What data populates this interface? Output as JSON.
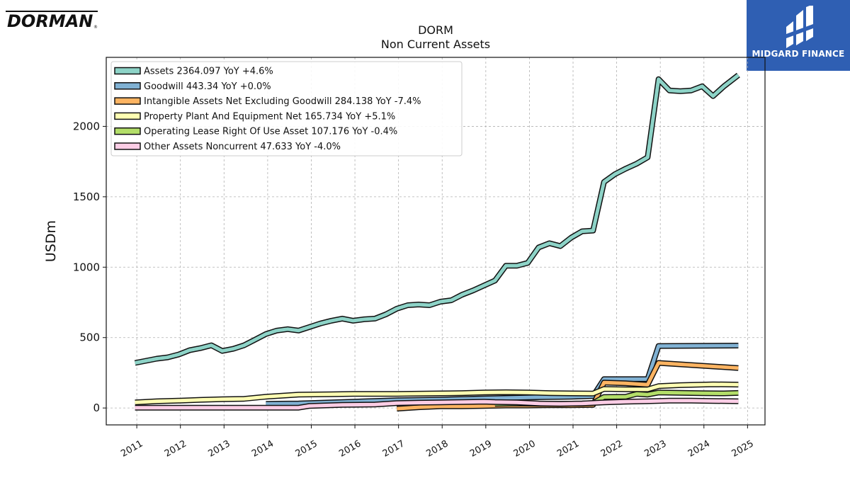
{
  "logos": {
    "left_brand": "DORMAN",
    "right_brand": "MIDGARD FINANCE"
  },
  "colors": {
    "assets": "#8dd3c7",
    "goodwill": "#80b1d3",
    "intangibles": "#fdb462",
    "ppe": "#ffffb3",
    "lease": "#b3de69",
    "other": "#fccde5",
    "logo_bg": "#2f5fb3"
  },
  "chart_data": {
    "type": "line",
    "title": "DORM",
    "subtitle": "Non Current  Assets",
    "xlabel": "",
    "ylabel": "USDm",
    "xlim": [
      2010.3,
      2025.4
    ],
    "ylim": [
      -120,
      2490
    ],
    "yticks": [
      0,
      500,
      1000,
      1500,
      2000
    ],
    "xticks": [
      "2011",
      "2012",
      "2013",
      "2014",
      "2015",
      "2016",
      "2017",
      "2018",
      "2019",
      "2020",
      "2021",
      "2022",
      "2023",
      "2024",
      "2025"
    ],
    "grid": true,
    "legend_position": "top-left",
    "series": [
      {
        "name": "Assets",
        "legend": "Assets  2364.097 YoY +4.6%",
        "points": [
          [
            2010.96,
            320
          ],
          [
            2011.21,
            335
          ],
          [
            2011.46,
            350
          ],
          [
            2011.71,
            360
          ],
          [
            2011.96,
            380
          ],
          [
            2012.21,
            410
          ],
          [
            2012.46,
            425
          ],
          [
            2012.71,
            445
          ],
          [
            2012.96,
            405
          ],
          [
            2013.21,
            420
          ],
          [
            2013.46,
            445
          ],
          [
            2013.71,
            485
          ],
          [
            2013.96,
            525
          ],
          [
            2014.21,
            550
          ],
          [
            2014.46,
            560
          ],
          [
            2014.71,
            550
          ],
          [
            2014.96,
            575
          ],
          [
            2015.21,
            600
          ],
          [
            2015.46,
            620
          ],
          [
            2015.71,
            635
          ],
          [
            2015.96,
            620
          ],
          [
            2016.21,
            630
          ],
          [
            2016.46,
            635
          ],
          [
            2016.71,
            665
          ],
          [
            2016.96,
            705
          ],
          [
            2017.21,
            730
          ],
          [
            2017.46,
            735
          ],
          [
            2017.71,
            730
          ],
          [
            2017.96,
            755
          ],
          [
            2018.21,
            765
          ],
          [
            2018.46,
            805
          ],
          [
            2018.71,
            835
          ],
          [
            2018.96,
            870
          ],
          [
            2019.21,
            905
          ],
          [
            2019.46,
            1010
          ],
          [
            2019.71,
            1010
          ],
          [
            2019.96,
            1030
          ],
          [
            2020.21,
            1140
          ],
          [
            2020.46,
            1170
          ],
          [
            2020.71,
            1150
          ],
          [
            2020.96,
            1210
          ],
          [
            2021.21,
            1255
          ],
          [
            2021.46,
            1260
          ],
          [
            2021.71,
            1605
          ],
          [
            2021.96,
            1660
          ],
          [
            2022.21,
            1700
          ],
          [
            2022.46,
            1735
          ],
          [
            2022.71,
            1780
          ],
          [
            2022.96,
            2335
          ],
          [
            2023.21,
            2255
          ],
          [
            2023.46,
            2250
          ],
          [
            2023.71,
            2255
          ],
          [
            2023.96,
            2285
          ],
          [
            2024.21,
            2215
          ],
          [
            2024.46,
            2285
          ],
          [
            2024.79,
            2364
          ]
        ]
      },
      {
        "name": "Goodwill",
        "legend": "Goodwill  443.34 YoY +0.0%",
        "points": [
          [
            2013.96,
            30
          ],
          [
            2014.71,
            32
          ],
          [
            2015.96,
            45
          ],
          [
            2016.96,
            55
          ],
          [
            2017.96,
            60
          ],
          [
            2018.96,
            68
          ],
          [
            2019.96,
            75
          ],
          [
            2020.96,
            80
          ],
          [
            2021.46,
            85
          ],
          [
            2021.71,
            205
          ],
          [
            2022.71,
            205
          ],
          [
            2022.96,
            440
          ],
          [
            2024.79,
            443
          ]
        ]
      },
      {
        "name": "Intangible Assets Net Excluding Goodwill",
        "legend": "Intangible Assets Net Excluding Goodwill  284.138 YoY -7.4%",
        "points": [
          [
            2016.96,
            -5
          ],
          [
            2017.46,
            5
          ],
          [
            2017.96,
            12
          ],
          [
            2018.46,
            12
          ],
          [
            2018.96,
            15
          ],
          [
            2019.46,
            18
          ],
          [
            2019.96,
            18
          ],
          [
            2020.46,
            20
          ],
          [
            2020.96,
            20
          ],
          [
            2021.46,
            22
          ],
          [
            2021.71,
            180
          ],
          [
            2022.21,
            175
          ],
          [
            2022.71,
            165
          ],
          [
            2022.96,
            320
          ],
          [
            2024.79,
            284
          ]
        ]
      },
      {
        "name": "Property Plant And Equipment Net",
        "legend": "Property Plant And Equipment Net  165.734 YoY +5.1%",
        "points": [
          [
            2010.96,
            40
          ],
          [
            2011.46,
            48
          ],
          [
            2011.96,
            52
          ],
          [
            2012.46,
            58
          ],
          [
            2012.96,
            62
          ],
          [
            2013.46,
            65
          ],
          [
            2013.96,
            80
          ],
          [
            2014.46,
            90
          ],
          [
            2014.71,
            95
          ],
          [
            2015.46,
            98
          ],
          [
            2015.96,
            100
          ],
          [
            2016.46,
            100
          ],
          [
            2016.96,
            100
          ],
          [
            2017.46,
            102
          ],
          [
            2017.96,
            104
          ],
          [
            2018.46,
            106
          ],
          [
            2018.96,
            110
          ],
          [
            2019.46,
            112
          ],
          [
            2019.96,
            110
          ],
          [
            2020.46,
            106
          ],
          [
            2020.96,
            104
          ],
          [
            2021.46,
            103
          ],
          [
            2021.71,
            135
          ],
          [
            2022.21,
            133
          ],
          [
            2022.71,
            132
          ],
          [
            2022.96,
            155
          ],
          [
            2023.46,
            162
          ],
          [
            2024.21,
            168
          ],
          [
            2024.79,
            166
          ]
        ]
      },
      {
        "name": "Operating Lease Right Of Use Asset",
        "legend": "Operating Lease Right Of Use Asset  107.176 YoY -0.4%",
        "points": [
          [
            2019.21,
            30
          ],
          [
            2019.71,
            32
          ],
          [
            2020.21,
            30
          ],
          [
            2020.71,
            30
          ],
          [
            2021.21,
            32
          ],
          [
            2021.46,
            35
          ],
          [
            2021.71,
            78
          ],
          [
            2022.21,
            80
          ],
          [
            2022.46,
            100
          ],
          [
            2022.71,
            95
          ],
          [
            2022.96,
            110
          ],
          [
            2023.46,
            108
          ],
          [
            2023.96,
            105
          ],
          [
            2024.46,
            104
          ],
          [
            2024.79,
            107
          ]
        ]
      },
      {
        "name": "Other Assets Noncurrent",
        "legend": "Other Assets Noncurrent  47.633 YoY -4.0%",
        "points": [
          [
            2010.96,
            2
          ],
          [
            2011.71,
            2
          ],
          [
            2012.71,
            2
          ],
          [
            2013.71,
            2
          ],
          [
            2014.71,
            2
          ],
          [
            2014.96,
            15
          ],
          [
            2015.71,
            22
          ],
          [
            2016.46,
            25
          ],
          [
            2016.96,
            35
          ],
          [
            2017.46,
            38
          ],
          [
            2017.96,
            40
          ],
          [
            2018.46,
            42
          ],
          [
            2018.96,
            45
          ],
          [
            2019.21,
            42
          ],
          [
            2019.71,
            40
          ],
          [
            2020.21,
            32
          ],
          [
            2020.71,
            30
          ],
          [
            2021.21,
            32
          ],
          [
            2021.71,
            40
          ],
          [
            2022.21,
            45
          ],
          [
            2022.71,
            48
          ],
          [
            2023.21,
            52
          ],
          [
            2023.71,
            52
          ],
          [
            2024.21,
            50
          ],
          [
            2024.79,
            48
          ]
        ]
      }
    ]
  }
}
